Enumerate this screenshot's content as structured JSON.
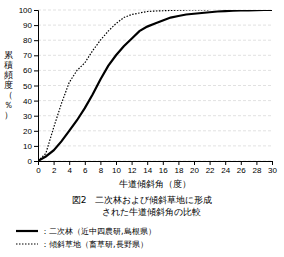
{
  "chart_data": {
    "type": "line",
    "title": "図2　二次林および傾斜草地に形成",
    "subtitle": "　　された牛道傾斜角の比較",
    "xlabel": "牛道傾斜角（度）",
    "ylabel": "累積頻度（％）",
    "xlim": [
      0,
      30
    ],
    "ylim": [
      0,
      100
    ],
    "xticks": [
      0,
      2,
      4,
      6,
      8,
      10,
      12,
      14,
      16,
      18,
      20,
      22,
      24,
      26,
      28,
      30
    ],
    "yticks": [
      0,
      10,
      20,
      30,
      40,
      50,
      60,
      70,
      80,
      90,
      100
    ],
    "grid": "y",
    "legend": "bottom",
    "series": [
      {
        "name": "：二次林（近中四農研,島根県）",
        "color": "#000000",
        "line_style": "solid",
        "x": [
          0,
          1,
          2,
          3,
          4,
          5,
          6,
          7,
          8,
          9,
          10,
          11,
          12,
          13,
          14,
          15,
          16,
          17,
          18,
          19,
          20,
          21,
          22,
          23,
          24,
          25,
          26,
          27,
          28,
          29,
          30
        ],
        "values": [
          0,
          3,
          7,
          13,
          20,
          27,
          35,
          44,
          54,
          63,
          70,
          76,
          81,
          86,
          89,
          91,
          93,
          95,
          96,
          97,
          97.5,
          98,
          98.5,
          99,
          99.2,
          99.5,
          99.7,
          99.8,
          99.9,
          100,
          100
        ]
      },
      {
        "name": "：傾斜草地（畜草研,長野県）",
        "color": "#000000",
        "line_style": "dotted",
        "x": [
          0,
          1,
          2,
          3,
          4,
          5,
          6,
          7,
          8,
          9,
          10,
          11,
          12,
          13,
          14,
          15,
          16,
          17,
          18,
          19,
          20,
          21,
          22
        ],
        "values": [
          0,
          5,
          22,
          38,
          52,
          60,
          65,
          73,
          80,
          86,
          91,
          95,
          97,
          98,
          99,
          99.3,
          99.5,
          99.7,
          99.9,
          100,
          100,
          100,
          100
        ]
      }
    ]
  }
}
